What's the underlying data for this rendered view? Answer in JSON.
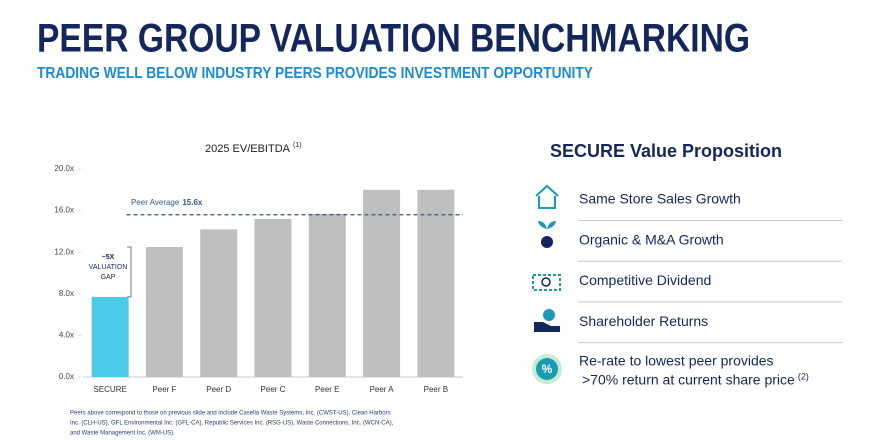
{
  "header": {
    "title": "PEER GROUP VALUATION BENCHMARKING",
    "subtitle": "TRADING WELL BELOW INDUSTRY PEERS PROVIDES INVESTMENT OPPORTUNITY"
  },
  "chart_data": {
    "type": "bar",
    "title": "2025 EV/EBITDA",
    "title_note": "(1)",
    "categories": [
      "SECURE",
      "Peer F",
      "Peer D",
      "Peer C",
      "Peer E",
      "Peer A",
      "Peer B"
    ],
    "values": [
      7.7,
      12.5,
      14.2,
      15.2,
      15.7,
      18.0,
      18.0
    ],
    "colors": [
      "#4dc9e8",
      "#bfbfbf",
      "#bfbfbf",
      "#bfbfbf",
      "#bfbfbf",
      "#bfbfbf",
      "#bfbfbf"
    ],
    "ylim": [
      0,
      20
    ],
    "yticks": [
      {
        "value": 0,
        "label": "0.0x"
      },
      {
        "value": 4,
        "label": "4.0x"
      },
      {
        "value": 8,
        "label": "8.0x"
      },
      {
        "value": 12,
        "label": "12.0x"
      },
      {
        "value": 16,
        "label": "16.0x"
      },
      {
        "value": 20,
        "label": "20.0x"
      }
    ],
    "reference_line": {
      "label": "Peer Average",
      "value": 15.6,
      "value_label": "15.6x",
      "color": "#2e5a8a"
    },
    "annotation": [
      "~5X",
      "VALUATION",
      "GAP"
    ]
  },
  "value_proposition": {
    "title": "SECURE Value Proposition",
    "items": [
      "Same Store Sales Growth",
      "Organic & M&A Growth",
      "Competitive Dividend",
      "Shareholder Returns"
    ],
    "highlight": {
      "lines": [
        "Re-rate to lowest peer provides",
        ">70% return at current share price"
      ],
      "note": "(2)"
    }
  },
  "footnote": [
    "Peers above correspond to those on previous slide and include Casella Waste Systems, Inc. (CWST-US), Clean Harbors",
    "Inc. (CLH-US), GFL Environmental Inc. (GFL-CA), Republic Services Inc. (RSG-US), Waste Connections, Inc. (WCN-CA),",
    "and Waste Management Inc. (WM-US)."
  ]
}
